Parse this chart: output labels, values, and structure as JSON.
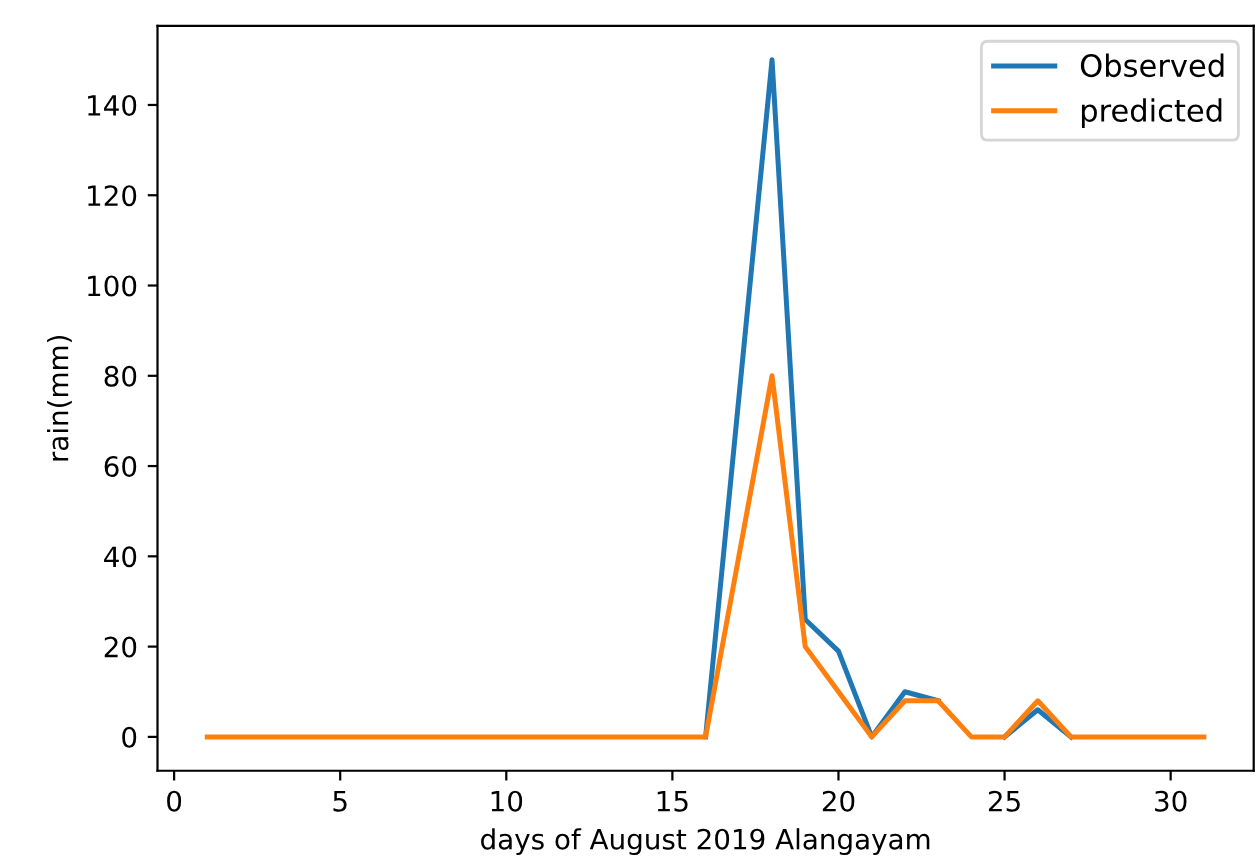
{
  "chart_data": {
    "type": "line",
    "xlabel": "days of August 2019 Alangayam",
    "ylabel": "rain(mm)",
    "x": [
      1,
      2,
      3,
      4,
      5,
      6,
      7,
      8,
      9,
      10,
      11,
      12,
      13,
      14,
      15,
      16,
      17,
      18,
      19,
      20,
      21,
      22,
      23,
      24,
      25,
      26,
      27,
      28,
      29,
      30,
      31
    ],
    "series": [
      {
        "name": "Observed",
        "color": "#1f77b4",
        "values": [
          null,
          null,
          null,
          null,
          null,
          null,
          null,
          null,
          null,
          null,
          null,
          null,
          null,
          null,
          null,
          0,
          75,
          150,
          26,
          19,
          0,
          10,
          8,
          null,
          0,
          6,
          0,
          null,
          null,
          null,
          null
        ]
      },
      {
        "name": "predicted",
        "color": "#ff7f0e",
        "values": [
          0,
          0,
          0,
          0,
          0,
          0,
          0,
          0,
          0,
          0,
          0,
          0,
          0,
          0,
          0,
          0,
          40,
          80,
          20,
          10,
          0,
          8,
          8,
          0,
          0,
          8,
          0,
          0,
          0,
          0,
          0
        ]
      }
    ],
    "xlim": [
      -0.5,
      32.5
    ],
    "xticks": [
      0,
      5,
      10,
      15,
      20,
      25,
      30
    ],
    "ylim": [
      -7.5,
      157.5
    ],
    "yticks": [
      0,
      20,
      40,
      60,
      80,
      100,
      120,
      140
    ],
    "grid": false,
    "legend": "top right",
    "marker": "none",
    "line_style": "solid"
  }
}
